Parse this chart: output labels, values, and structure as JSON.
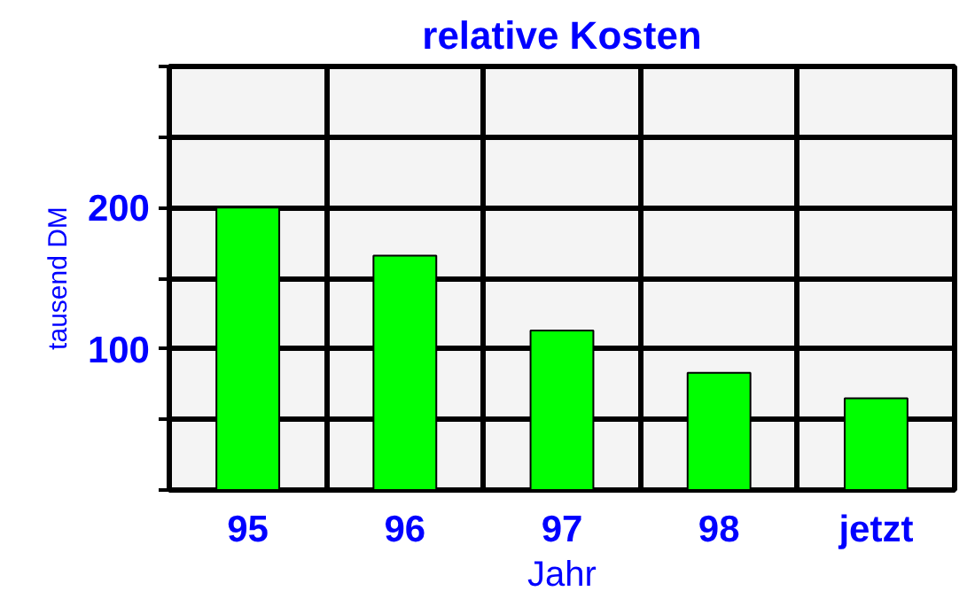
{
  "chart_data": {
    "type": "bar",
    "title": "relative Kosten",
    "xlabel": "Jahr",
    "ylabel": "tausend DM",
    "categories": [
      "95",
      "96",
      "97",
      "98",
      "jetzt"
    ],
    "values": [
      200,
      166,
      113,
      83,
      65
    ],
    "color": "#00ff00",
    "ylim": [
      0,
      300
    ],
    "yticks": [
      {
        "value": 0,
        "label": null
      },
      {
        "value": 50,
        "label": null
      },
      100,
      {
        "value": 150,
        "label": null
      },
      200,
      {
        "value": 250,
        "label": null
      },
      {
        "value": 300,
        "label": null
      }
    ],
    "grid": true
  }
}
